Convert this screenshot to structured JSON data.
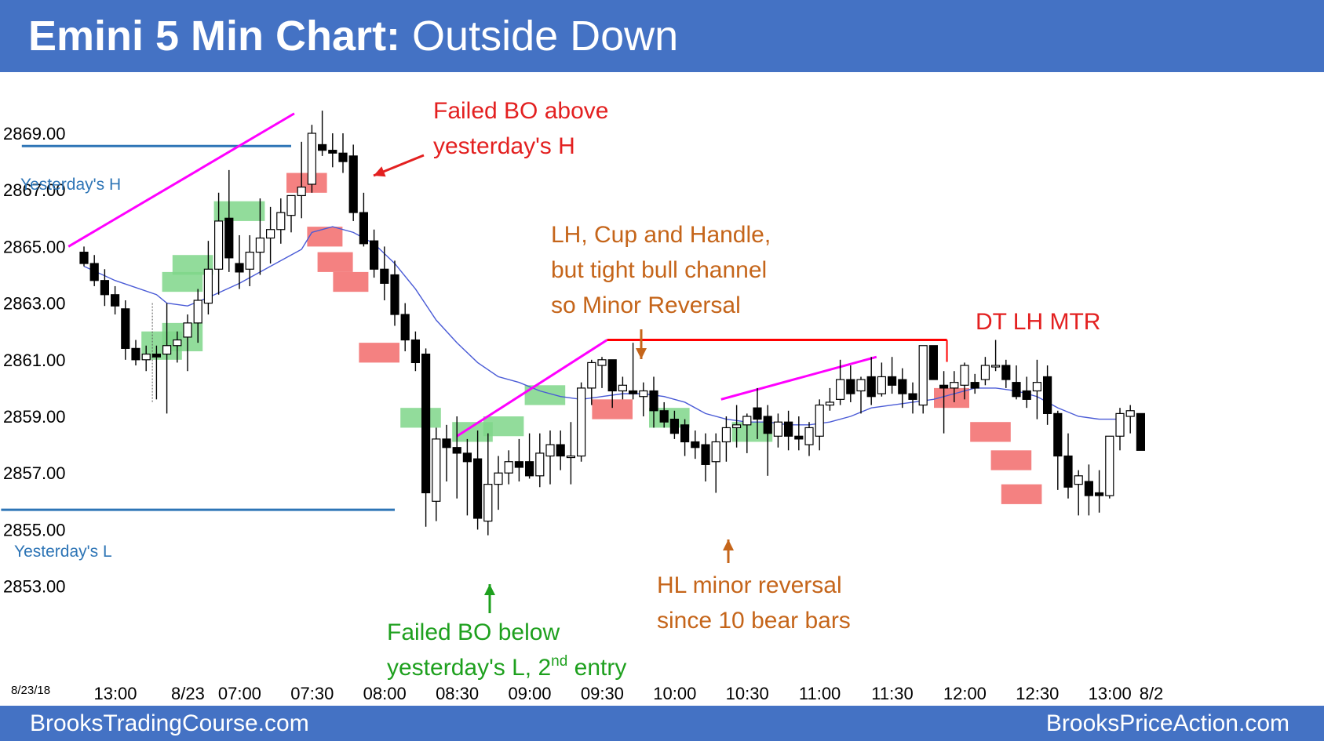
{
  "header": {
    "title_bold": "Emini 5 Min Chart:",
    "title_rest": "Outside Down"
  },
  "footer": {
    "left": "BrooksTradingCourse.com",
    "right": "BrooksPriceAction.com"
  },
  "colors": {
    "header_bg": "#4472c4",
    "ema": "#4a5bd6",
    "trendline": "#ff00ff",
    "level_line": "#2e75b6",
    "resistance_line": "#ff0000",
    "bull_signal": "#7fd68a",
    "bear_signal": "#f26b6b"
  },
  "chart_data": {
    "type": "candlestick",
    "date_label": "8/23/18",
    "ylim": [
      2852,
      2870.5
    ],
    "y_ticks": [
      "2869.00",
      "2867.00",
      "2865.00",
      "2863.00",
      "2861.00",
      "2859.00",
      "2857.00",
      "2855.00",
      "2853.00"
    ],
    "x_ticks": [
      {
        "label": "13:00",
        "bar": 0
      },
      {
        "label": "8/23",
        "bar": 7
      },
      {
        "label": "07:00",
        "bar": 12
      },
      {
        "label": "07:30",
        "bar": 19
      },
      {
        "label": "08:00",
        "bar": 26
      },
      {
        "label": "08:30",
        "bar": 33
      },
      {
        "label": "09:00",
        "bar": 40
      },
      {
        "label": "09:30",
        "bar": 47
      },
      {
        "label": "10:00",
        "bar": 54
      },
      {
        "label": "10:30",
        "bar": 61
      },
      {
        "label": "11:00",
        "bar": 68
      },
      {
        "label": "11:30",
        "bar": 75
      },
      {
        "label": "12:00",
        "bar": 82
      },
      {
        "label": "12:30",
        "bar": 89
      },
      {
        "label": "13:00",
        "bar": 96
      },
      {
        "label": "8/2",
        "bar": 100
      }
    ],
    "bars_x_start": 107,
    "bar_step": 13.2,
    "candles": [
      [
        2864.8,
        2865.0,
        2864.3,
        2864.4
      ],
      [
        2864.4,
        2864.7,
        2863.6,
        2863.8
      ],
      [
        2863.8,
        2864.2,
        2862.9,
        2863.3
      ],
      [
        2863.3,
        2863.6,
        2862.6,
        2862.9
      ],
      [
        2862.8,
        2863.1,
        2861.0,
        2861.4
      ],
      [
        2861.4,
        2861.7,
        2860.8,
        2861.0
      ],
      [
        2861.0,
        2861.5,
        2860.6,
        2861.2
      ],
      [
        2861.2,
        2861.5,
        2859.6,
        2861.1
      ],
      [
        2861.2,
        2863.0,
        2859.1,
        2861.5
      ],
      [
        2861.5,
        2862.0,
        2860.9,
        2861.7
      ],
      [
        2861.8,
        2862.6,
        2860.6,
        2862.3
      ],
      [
        2862.3,
        2863.5,
        2861.6,
        2863.1
      ],
      [
        2863.0,
        2865.2,
        2862.6,
        2864.2
      ],
      [
        2864.2,
        2866.9,
        2863.3,
        2865.9
      ],
      [
        2866.0,
        2867.7,
        2864.1,
        2864.6
      ],
      [
        2864.4,
        2865.4,
        2863.5,
        2864.1
      ],
      [
        2864.2,
        2865.4,
        2863.6,
        2864.8
      ],
      [
        2864.8,
        2866.7,
        2864.0,
        2865.3
      ],
      [
        2865.3,
        2866.4,
        2864.4,
        2865.6
      ],
      [
        2865.6,
        2866.7,
        2865.1,
        2866.2
      ],
      [
        2866.1,
        2866.8,
        2865.5,
        2866.8
      ],
      [
        2866.8,
        2868.7,
        2866.0,
        2867.1
      ],
      [
        2867.2,
        2869.3,
        2866.9,
        2869.0
      ],
      [
        2868.6,
        2869.8,
        2868.2,
        2868.4
      ],
      [
        2868.4,
        2869.0,
        2867.8,
        2868.3
      ],
      [
        2868.3,
        2869.0,
        2867.6,
        2868.0
      ],
      [
        2868.2,
        2868.6,
        2865.9,
        2866.2
      ],
      [
        2866.2,
        2866.9,
        2865.0,
        2865.1
      ],
      [
        2865.2,
        2865.6,
        2863.9,
        2864.2
      ],
      [
        2864.2,
        2865.0,
        2863.1,
        2863.7
      ],
      [
        2864.0,
        2864.5,
        2862.2,
        2862.6
      ],
      [
        2862.6,
        2863.0,
        2861.3,
        2861.7
      ],
      [
        2861.7,
        2862.0,
        2860.6,
        2860.9
      ],
      [
        2861.2,
        2861.4,
        2855.1,
        2856.3
      ],
      [
        2856.0,
        2858.6,
        2855.3,
        2858.2
      ],
      [
        2858.2,
        2858.7,
        2856.7,
        2857.9
      ],
      [
        2857.9,
        2859.0,
        2856.1,
        2857.7
      ],
      [
        2857.7,
        2858.2,
        2855.5,
        2857.4
      ],
      [
        2857.5,
        2858.5,
        2855.0,
        2855.4
      ],
      [
        2855.3,
        2858.4,
        2854.8,
        2856.6
      ],
      [
        2856.6,
        2857.6,
        2855.7,
        2857.0
      ],
      [
        2857.0,
        2857.8,
        2856.6,
        2857.4
      ],
      [
        2857.4,
        2858.2,
        2856.7,
        2857.2
      ],
      [
        2857.4,
        2858.4,
        2856.8,
        2856.9
      ],
      [
        2856.9,
        2858.4,
        2856.5,
        2857.7
      ],
      [
        2857.6,
        2858.5,
        2856.6,
        2858.0
      ],
      [
        2858.0,
        2858.5,
        2857.1,
        2857.6
      ],
      [
        2857.6,
        2858.8,
        2856.6,
        2857.6
      ],
      [
        2857.6,
        2860.2,
        2857.4,
        2860.0
      ],
      [
        2860.0,
        2861.0,
        2859.4,
        2860.9
      ],
      [
        2860.8,
        2861.1,
        2860.0,
        2861.0
      ],
      [
        2861.0,
        2861.0,
        2859.3,
        2859.9
      ],
      [
        2859.9,
        2860.4,
        2859.6,
        2860.1
      ],
      [
        2859.9,
        2861.6,
        2859.6,
        2859.8
      ],
      [
        2859.7,
        2860.2,
        2859.0,
        2859.9
      ],
      [
        2859.9,
        2860.4,
        2858.6,
        2859.2
      ],
      [
        2859.2,
        2859.5,
        2858.6,
        2858.8
      ],
      [
        2858.9,
        2859.2,
        2858.2,
        2858.4
      ],
      [
        2858.7,
        2858.9,
        2857.6,
        2858.1
      ],
      [
        2858.1,
        2858.5,
        2857.5,
        2857.9
      ],
      [
        2858.0,
        2858.4,
        2856.7,
        2857.3
      ],
      [
        2857.4,
        2858.4,
        2856.3,
        2858.1
      ],
      [
        2858.1,
        2859.0,
        2857.4,
        2858.6
      ],
      [
        2858.6,
        2859.4,
        2857.9,
        2858.7
      ],
      [
        2858.7,
        2859.1,
        2857.7,
        2859.0
      ],
      [
        2859.3,
        2860.0,
        2858.2,
        2858.9
      ],
      [
        2859.0,
        2859.4,
        2856.9,
        2858.4
      ],
      [
        2858.3,
        2859.1,
        2857.9,
        2858.8
      ],
      [
        2858.8,
        2859.2,
        2857.8,
        2858.3
      ],
      [
        2858.3,
        2859.0,
        2857.8,
        2858.2
      ],
      [
        2858.0,
        2858.8,
        2857.6,
        2858.6
      ],
      [
        2858.3,
        2859.6,
        2857.8,
        2859.4
      ],
      [
        2859.4,
        2860.0,
        2859.2,
        2859.5
      ],
      [
        2859.6,
        2861.0,
        2859.4,
        2860.3
      ],
      [
        2860.3,
        2860.8,
        2859.5,
        2859.8
      ],
      [
        2859.9,
        2860.4,
        2859.1,
        2860.3
      ],
      [
        2860.4,
        2861.1,
        2859.4,
        2859.7
      ],
      [
        2859.8,
        2860.9,
        2859.7,
        2860.4
      ],
      [
        2860.4,
        2861.1,
        2859.8,
        2860.1
      ],
      [
        2860.3,
        2860.7,
        2859.3,
        2859.8
      ],
      [
        2859.8,
        2860.2,
        2859.1,
        2859.6
      ],
      [
        2859.4,
        2861.5,
        2859.1,
        2861.5
      ],
      [
        2861.5,
        2861.5,
        2860.3,
        2860.3
      ],
      [
        2860.1,
        2860.6,
        2858.4,
        2860.0
      ],
      [
        2860.0,
        2860.6,
        2859.5,
        2860.2
      ],
      [
        2860.1,
        2860.9,
        2859.6,
        2860.8
      ],
      [
        2860.2,
        2860.5,
        2859.8,
        2860.0
      ],
      [
        2860.3,
        2861.1,
        2860.1,
        2860.8
      ],
      [
        2860.8,
        2861.7,
        2860.6,
        2860.8
      ],
      [
        2860.8,
        2861.0,
        2860.0,
        2860.3
      ],
      [
        2860.2,
        2860.8,
        2859.6,
        2859.7
      ],
      [
        2859.9,
        2860.4,
        2859.3,
        2859.6
      ],
      [
        2859.9,
        2861.0,
        2858.9,
        2860.2
      ],
      [
        2860.4,
        2860.8,
        2858.7,
        2859.1
      ],
      [
        2859.1,
        2859.2,
        2856.4,
        2857.6
      ],
      [
        2857.6,
        2858.4,
        2856.1,
        2856.5
      ],
      [
        2856.6,
        2857.1,
        2855.5,
        2856.9
      ],
      [
        2856.7,
        2857.3,
        2855.5,
        2856.2
      ],
      [
        2856.3,
        2857.1,
        2855.6,
        2856.2
      ],
      [
        2856.2,
        2858.3,
        2856.1,
        2858.3
      ],
      [
        2858.3,
        2859.3,
        2857.8,
        2859.1
      ],
      [
        2859.0,
        2859.4,
        2858.4,
        2859.2
      ],
      [
        2859.1,
        2859.1,
        2857.8,
        2857.8
      ]
    ],
    "ema": [
      [
        0,
        2864.3
      ],
      [
        3,
        2863.8
      ],
      [
        7,
        2863.3
      ],
      [
        8,
        2863.0
      ],
      [
        10,
        2862.9
      ],
      [
        12,
        2863.2
      ],
      [
        15,
        2863.7
      ],
      [
        18,
        2864.3
      ],
      [
        21,
        2864.9
      ],
      [
        22,
        2865.5
      ],
      [
        24,
        2865.7
      ],
      [
        26,
        2865.5
      ],
      [
        28,
        2865.1
      ],
      [
        30,
        2864.4
      ],
      [
        32,
        2863.5
      ],
      [
        34,
        2862.4
      ],
      [
        36,
        2861.6
      ],
      [
        38,
        2860.9
      ],
      [
        40,
        2860.4
      ],
      [
        42,
        2860.2
      ],
      [
        44,
        2859.9
      ],
      [
        46,
        2859.7
      ],
      [
        48,
        2859.6
      ],
      [
        50,
        2859.7
      ],
      [
        52,
        2859.8
      ],
      [
        54,
        2859.8
      ],
      [
        56,
        2859.7
      ],
      [
        58,
        2859.5
      ],
      [
        60,
        2859.1
      ],
      [
        62,
        2858.9
      ],
      [
        64,
        2858.8
      ],
      [
        66,
        2858.8
      ],
      [
        68,
        2858.7
      ],
      [
        70,
        2858.7
      ],
      [
        72,
        2858.8
      ],
      [
        74,
        2859.0
      ],
      [
        76,
        2859.3
      ],
      [
        78,
        2859.4
      ],
      [
        80,
        2859.5
      ],
      [
        82,
        2859.6
      ],
      [
        84,
        2859.8
      ],
      [
        86,
        2860.0
      ],
      [
        88,
        2860.0
      ],
      [
        90,
        2859.9
      ],
      [
        92,
        2859.7
      ],
      [
        94,
        2859.3
      ],
      [
        96,
        2859.0
      ],
      [
        98,
        2858.9
      ],
      [
        100,
        2858.9
      ]
    ],
    "level_lines": [
      {
        "label": "Yesterday's H",
        "price": 2868.55,
        "bar_from": -6,
        "bar_to": 20
      },
      {
        "label": "Yesterday's L",
        "price": 2855.7,
        "bar_from": -8,
        "bar_to": 30
      }
    ],
    "trendlines": [
      [
        -1.5,
        2865.0,
        20.3,
        2869.7
      ],
      [
        36,
        2858.3,
        50.5,
        2861.7
      ],
      [
        61.5,
        2859.6,
        76.5,
        2861.1
      ]
    ],
    "resistance_line": {
      "bar_from": 50.5,
      "bar_to": 83.3,
      "price": 2861.7
    },
    "bull_signals": [
      [
        6,
        9,
        2861.0,
        2862.0
      ],
      [
        8,
        11,
        2861.3,
        2862.3
      ],
      [
        8,
        11,
        2863.4,
        2864.1
      ],
      [
        9,
        12,
        2864.0,
        2864.7
      ],
      [
        13,
        17,
        2865.9,
        2866.6
      ],
      [
        31,
        34,
        2858.6,
        2859.3
      ],
      [
        36,
        39,
        2858.1,
        2858.8
      ],
      [
        39,
        42,
        2858.3,
        2859.0
      ],
      [
        43,
        46,
        2859.4,
        2860.1
      ],
      [
        55,
        58,
        2858.6,
        2859.3
      ],
      [
        63,
        66,
        2858.1,
        2858.8
      ]
    ],
    "bear_signals": [
      [
        20,
        23,
        2866.9,
        2867.6
      ],
      [
        22,
        24.5,
        2865.0,
        2865.7
      ],
      [
        23,
        25.5,
        2864.1,
        2864.8
      ],
      [
        24.5,
        27,
        2863.4,
        2864.1
      ],
      [
        27,
        30,
        2860.9,
        2861.6
      ],
      [
        49.5,
        52.5,
        2858.9,
        2859.6
      ],
      [
        82.5,
        85,
        2859.3,
        2860.0
      ],
      [
        86,
        89,
        2858.1,
        2858.8
      ],
      [
        88,
        91,
        2857.1,
        2857.8
      ],
      [
        89,
        92,
        2855.9,
        2856.6
      ]
    ],
    "annotations": [
      {
        "lines": [
          "Failed BO above",
          "yesterday's H"
        ],
        "color": "#e32020",
        "anchor": "ann-bo-high"
      },
      {
        "lines": [
          "LH, Cup and Handle,",
          "but tight bull channel",
          "so Minor Reversal"
        ],
        "color": "#c5651a",
        "anchor": "ann-cup"
      },
      {
        "lines": [
          "DT LH MTR"
        ],
        "color": "#e32020",
        "anchor": "ann-dt"
      },
      {
        "lines": [
          "HL minor reversal",
          "since 10 bear bars"
        ],
        "color": "#c5651a",
        "anchor": "ann-hl"
      },
      {
        "lines": [
          "Failed BO below",
          "yesterday's L, 2",
          "nd",
          " entry"
        ],
        "color": "#1ea01e",
        "anchor": "ann-bo-low"
      }
    ]
  }
}
